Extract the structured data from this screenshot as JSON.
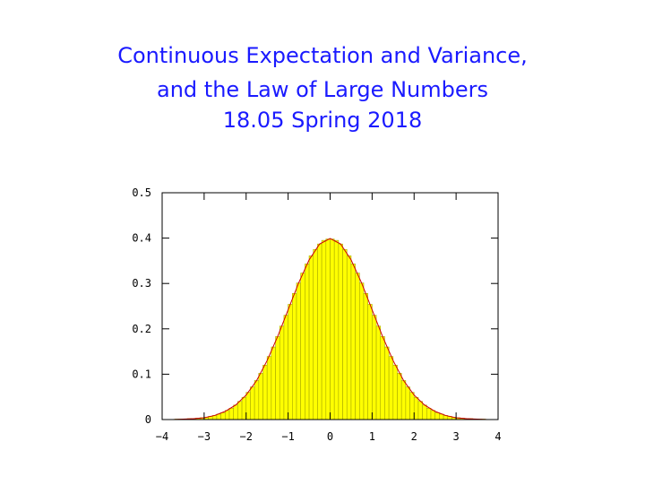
{
  "slide": {
    "title_lines": [
      "Continuous Expectation and Variance,",
      "and the Law of Large Numbers",
      "18.05 Spring 2018"
    ]
  },
  "chart_data": {
    "type": "histogram",
    "bins": [
      -4,
      -3.9,
      -3.8,
      -3.7,
      -3.6,
      -3.5,
      -3.4,
      -3.3,
      -3.2,
      -3.1,
      -3,
      -2.9,
      -2.8,
      -2.7,
      -2.6,
      -2.5,
      -2.4,
      -2.3,
      -2.2,
      -2.1,
      -2,
      -1.9,
      -1.8,
      -1.7,
      -1.6,
      -1.5,
      -1.4,
      -1.3,
      -1.2,
      -1.1,
      -1,
      -0.9,
      -0.8,
      -0.7,
      -0.6,
      -0.5,
      -0.4,
      -0.3,
      -0.2,
      -0.1,
      0,
      0.1,
      0.2,
      0.3,
      0.4,
      0.5,
      0.6,
      0.7,
      0.8,
      0.9,
      1,
      1.1,
      1.2,
      1.3,
      1.4,
      1.5,
      1.6,
      1.7,
      1.8,
      1.9,
      2,
      2.1,
      2.2,
      2.3,
      2.4,
      2.5,
      2.6,
      2.7,
      2.8,
      2.9,
      3,
      3.1,
      3.2,
      3.3,
      3.4,
      3.5,
      3.6,
      3.7,
      3.8,
      3.9,
      4
    ],
    "counts": [
      0.0,
      0.0,
      0.0,
      0.001,
      0.001,
      0.001,
      0.002,
      0.002,
      0.003,
      0.004,
      0.005,
      0.007,
      0.009,
      0.012,
      0.015,
      0.02,
      0.025,
      0.032,
      0.04,
      0.049,
      0.06,
      0.072,
      0.086,
      0.102,
      0.12,
      0.139,
      0.16,
      0.183,
      0.206,
      0.23,
      0.254,
      0.278,
      0.301,
      0.323,
      0.343,
      0.361,
      0.375,
      0.387,
      0.395,
      0.398,
      0.398,
      0.395,
      0.387,
      0.375,
      0.361,
      0.343,
      0.323,
      0.301,
      0.278,
      0.254,
      0.23,
      0.206,
      0.183,
      0.16,
      0.139,
      0.12,
      0.102,
      0.086,
      0.072,
      0.06,
      0.049,
      0.04,
      0.032,
      0.025,
      0.02,
      0.015,
      0.012,
      0.009,
      0.007,
      0.005,
      0.004,
      0.003,
      0.002,
      0.002,
      0.001,
      0.001,
      0.001,
      0.0,
      0.0,
      0.0
    ],
    "color": "#ffff00",
    "edge_color": "#a8a800",
    "curve": {
      "color": "#cc0000",
      "x": [
        -4,
        -3.75,
        -3.5,
        -3.25,
        -3,
        -2.75,
        -2.5,
        -2.25,
        -2,
        -1.75,
        -1.5,
        -1.25,
        -1,
        -0.75,
        -0.5,
        -0.25,
        0,
        0.25,
        0.5,
        0.75,
        1,
        1.25,
        1.5,
        1.75,
        2,
        2.25,
        2.5,
        2.75,
        3,
        3.25,
        3.5,
        3.75,
        4
      ],
      "values": [
        0.0,
        0.0,
        0.001,
        0.002,
        0.004,
        0.009,
        0.018,
        0.032,
        0.054,
        0.086,
        0.13,
        0.183,
        0.242,
        0.301,
        0.352,
        0.387,
        0.399,
        0.387,
        0.352,
        0.301,
        0.242,
        0.183,
        0.13,
        0.086,
        0.054,
        0.032,
        0.018,
        0.009,
        0.004,
        0.002,
        0.001,
        0.0,
        0.0
      ]
    },
    "xlim": [
      -4,
      4
    ],
    "ylim": [
      0,
      0.5
    ],
    "xticks": [
      {
        "value": -4,
        "label": "−4"
      },
      {
        "value": -3,
        "label": "−3"
      },
      {
        "value": -2,
        "label": "−2"
      },
      {
        "value": -1,
        "label": "−1"
      },
      0,
      1,
      2,
      3,
      4
    ],
    "yticks": [
      0,
      0.1,
      0.2,
      0.3,
      0.4,
      0.5
    ]
  }
}
